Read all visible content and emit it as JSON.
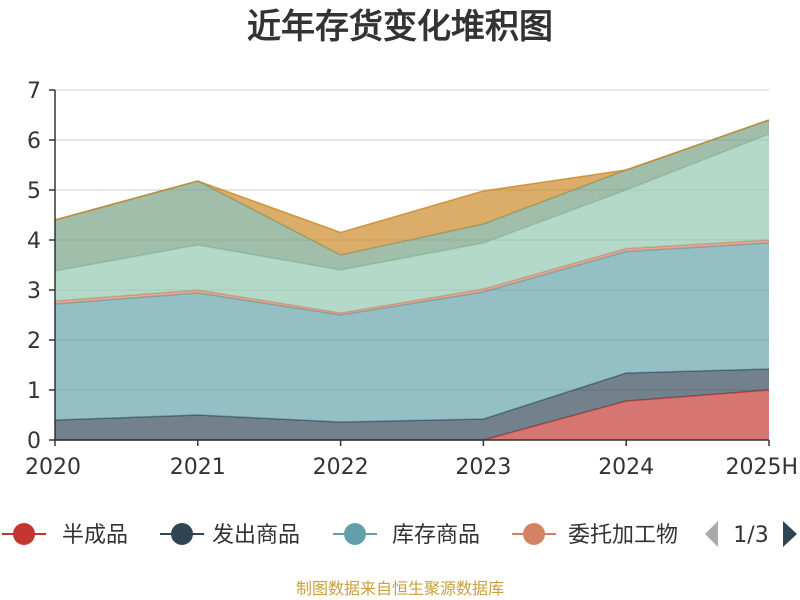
{
  "chart_data": {
    "type": "area",
    "stacked": true,
    "title": "近年存货变化堆积图",
    "xlabel": "",
    "ylabel": "",
    "categories": [
      "2020",
      "2021",
      "2022",
      "2023",
      "2024",
      "2025H"
    ],
    "ylim": [
      0,
      7
    ],
    "yticks": [
      0,
      1,
      2,
      3,
      4,
      5,
      6,
      7
    ],
    "grid": true,
    "series": [
      {
        "name": "半成品",
        "color": "#c23531",
        "values": [
          0,
          0,
          0,
          0,
          0.78,
          1.0
        ],
        "legend": true
      },
      {
        "name": "发出商品",
        "color": "#2f4554",
        "values": [
          0.4,
          0.5,
          0.36,
          0.42,
          0.56,
          0.42
        ],
        "legend": true
      },
      {
        "name": "库存商品",
        "color": "#61a0a8",
        "values": [
          2.32,
          2.44,
          2.14,
          2.54,
          2.43,
          2.52
        ],
        "legend": true
      },
      {
        "name": "委托加工物",
        "color": "#d48265",
        "values": [
          0.06,
          0.06,
          0.04,
          0.06,
          0.06,
          0.06
        ],
        "legend": true
      },
      {
        "name": "",
        "color": "#91c7ae",
        "values": [
          0.6,
          0.9,
          0.86,
          0.92,
          1.17,
          2.12
        ],
        "legend": false
      },
      {
        "name": "",
        "color": "#749f83",
        "values": [
          1.02,
          1.28,
          0.3,
          0.38,
          0.4,
          0.28
        ],
        "legend": false
      },
      {
        "name": "",
        "color": "#ca8622",
        "values": [
          0,
          0,
          0.45,
          0.66,
          0,
          0
        ],
        "legend": false
      }
    ],
    "legend": {
      "position": "bottom",
      "page": "1/3"
    }
  },
  "source": {
    "text": "制图数据来自恒生聚源数据库",
    "color": "#c8a13c"
  },
  "colors": {
    "axis": "#333333",
    "grid": "#cccccc",
    "pager_active": "#2f4554",
    "pager_inactive": "#aaaaaa"
  }
}
